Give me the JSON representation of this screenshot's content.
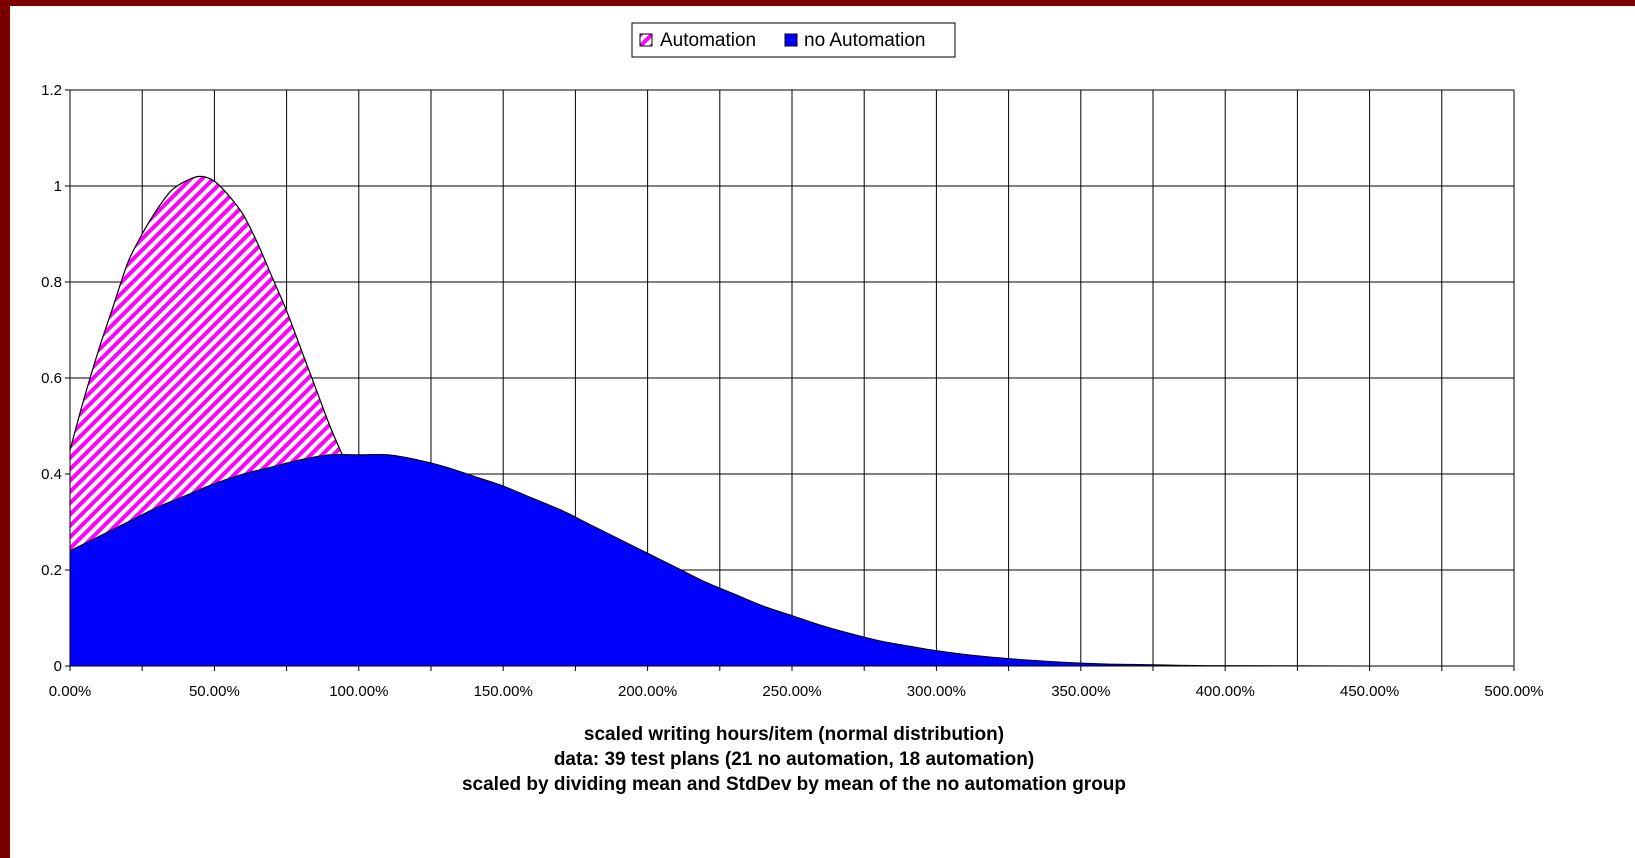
{
  "colors": {
    "frame_border": "#7a0000",
    "background": "#ffffff",
    "automation_stripe": "#ff00ff",
    "no_automation_fill": "#0000ff",
    "grid": "#000000"
  },
  "legend": {
    "items": [
      {
        "label": "Automation",
        "pattern": "magenta-white diagonal stripes"
      },
      {
        "label": "no Automation",
        "pattern": "solid blue"
      }
    ]
  },
  "caption": {
    "line1": "scaled writing hours/item (normal distribution)",
    "line2": "data:  39 test plans (21 no automation, 18 automation)",
    "line3": "scaled by dividing mean and StdDev by mean of the no automation group"
  },
  "chart_data": {
    "type": "area",
    "title": "",
    "xlabel": "scaled writing hours/item (normal distribution)",
    "ylabel": "",
    "xlim": [
      0,
      500
    ],
    "ylim": [
      0,
      1.2
    ],
    "x_unit": "%",
    "x_ticks": [
      "0.00%",
      "50.00%",
      "100.00%",
      "150.00%",
      "200.00%",
      "250.00%",
      "300.00%",
      "350.00%",
      "400.00%",
      "450.00%",
      "500.00%"
    ],
    "y_ticks": [
      "0",
      "0.2",
      "0.4",
      "0.6",
      "0.8",
      "1",
      "1.2"
    ],
    "x_gridlines_step": 25,
    "grid": true,
    "legend_position": "top-center",
    "series": [
      {
        "name": "Automation",
        "x": [
          0,
          5,
          10,
          15,
          20,
          25,
          30,
          35,
          40,
          45,
          50,
          55,
          60,
          65,
          70,
          75,
          80,
          85,
          90,
          95,
          100
        ],
        "values": [
          0.45,
          0.56,
          0.66,
          0.75,
          0.84,
          0.9,
          0.95,
          0.99,
          1.01,
          1.02,
          1.01,
          0.98,
          0.94,
          0.88,
          0.81,
          0.74,
          0.66,
          0.58,
          0.5,
          0.43,
          0.36
        ]
      },
      {
        "name": "no Automation",
        "x": [
          0,
          10,
          20,
          30,
          40,
          50,
          60,
          70,
          80,
          90,
          100,
          110,
          120,
          130,
          140,
          150,
          160,
          170,
          180,
          190,
          200,
          210,
          220,
          230,
          240,
          250,
          260,
          270,
          280,
          290,
          300,
          310,
          320,
          330,
          340,
          350,
          360,
          370,
          380,
          390,
          400,
          420,
          450,
          500
        ],
        "values": [
          0.24,
          0.27,
          0.3,
          0.33,
          0.355,
          0.38,
          0.4,
          0.415,
          0.43,
          0.44,
          0.44,
          0.44,
          0.43,
          0.415,
          0.395,
          0.375,
          0.35,
          0.325,
          0.295,
          0.265,
          0.235,
          0.205,
          0.175,
          0.15,
          0.125,
          0.105,
          0.085,
          0.068,
          0.053,
          0.042,
          0.032,
          0.024,
          0.018,
          0.013,
          0.009,
          0.006,
          0.004,
          0.003,
          0.002,
          0.001,
          0.0008,
          0.0004,
          0.0001,
          0
        ]
      }
    ]
  }
}
